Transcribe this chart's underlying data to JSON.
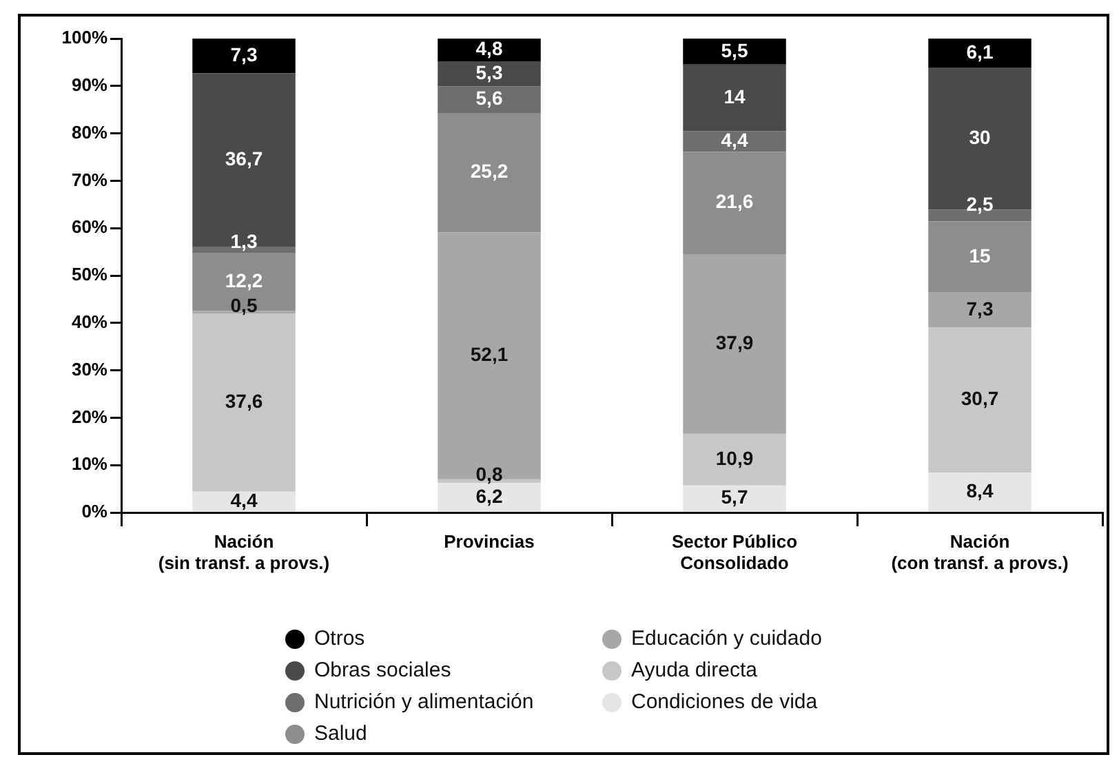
{
  "chart_data": {
    "type": "bar",
    "stacked": true,
    "legend": "bottom",
    "grid": false,
    "categories": [
      "Nación\n(sin transf. a provs.)",
      "Provincias",
      "Sector Público\nConsolidado",
      "Nación\n(con transf. a provs.)"
    ],
    "ylim": [
      0,
      100
    ],
    "yticks": [
      {
        "value": 0,
        "label": "0%"
      },
      {
        "value": 10,
        "label": "10%"
      },
      {
        "value": 20,
        "label": "20%"
      },
      {
        "value": 30,
        "label": "30%"
      },
      {
        "value": 40,
        "label": "40%"
      },
      {
        "value": 50,
        "label": "50%"
      },
      {
        "value": 60,
        "label": "60%"
      },
      {
        "value": 70,
        "label": "70%"
      },
      {
        "value": 80,
        "label": "80%"
      },
      {
        "value": 90,
        "label": "90%"
      },
      {
        "value": 100,
        "label": "100%"
      }
    ],
    "series": [
      {
        "name": "Condiciones de vida",
        "color": "#e6e6e8",
        "values": [
          4.4,
          6.2,
          5.7,
          8.4
        ],
        "value_labels": [
          "4,4",
          "6,2",
          "5,7",
          "8,4"
        ]
      },
      {
        "name": "Ayuda directa",
        "color": "#c6c7c9",
        "values": [
          37.6,
          0.8,
          10.9,
          30.7
        ],
        "value_labels": [
          "37,6",
          "0,8",
          "10,9",
          "30,7"
        ]
      },
      {
        "name": "Educación y cuidado",
        "color": "#a6a7a9",
        "values": [
          0.5,
          52.1,
          37.9,
          7.3
        ],
        "value_labels": [
          "0,5",
          "52,1",
          "37,9",
          "7,3"
        ]
      },
      {
        "name": "Salud",
        "color": "#8c8d8f",
        "values": [
          12.2,
          25.2,
          21.6,
          15
        ],
        "value_labels": [
          "12,2",
          "25,2",
          "21,6",
          "15"
        ]
      },
      {
        "name": "Nutrición y alimentación",
        "color": "#6d6e70",
        "values": [
          1.3,
          5.6,
          4.4,
          2.5
        ],
        "value_labels": [
          "1,3",
          "5,6",
          "4,4",
          "2,5"
        ]
      },
      {
        "name": "Obras sociales",
        "color": "#4a4a4c",
        "values": [
          36.7,
          5.3,
          14,
          30
        ],
        "value_labels": [
          "36,7",
          "5,3",
          "14",
          "30"
        ]
      },
      {
        "name": "Otros",
        "color": "#000000",
        "values": [
          7.3,
          4.8,
          5.5,
          6.1
        ],
        "value_labels": [
          "7,3",
          "4,8",
          "5,5",
          "6,1"
        ]
      }
    ]
  }
}
